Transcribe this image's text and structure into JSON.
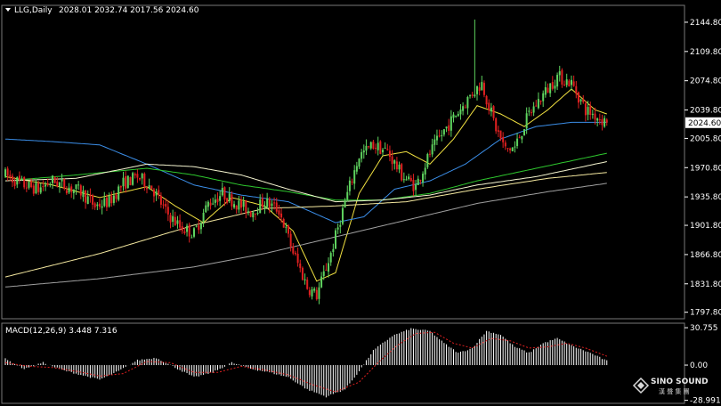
{
  "header": {
    "symbol_label": "LLG,Daily",
    "ohlc": "2028.01 2032.74 2017.56 2024.60",
    "indicator_label": "MACD(12,26,9) 3.448 7.316"
  },
  "watermark": {
    "brand": "SINO SOUND",
    "subtitle": "漢 聲 集 團"
  },
  "colors": {
    "background": "#000000",
    "bull": "#5fd35f",
    "bear": "#e02020",
    "ma_fast": "#f0e040",
    "ma_20": "#3b8ee8",
    "ma_50": "#2ec82e",
    "ma_60": "#f5f5d0",
    "ma_120": "#f5e9a0",
    "ma_200": "#a0a0a0",
    "macd_hist": "#ffffff",
    "macd_signal": "#e02020",
    "axis": "#ffffff"
  },
  "chart_data": [
    {
      "type": "candlestick",
      "ylim": [
        1790,
        2165
      ],
      "y_ticks": [
        "2144.80",
        "2109.80",
        "2074.80",
        "2039.80",
        "2005.80",
        "1970.80",
        "1935.80",
        "1901.80",
        "1866.80",
        "1831.80",
        "1797.80"
      ],
      "current_price_label": "2024.60",
      "price_anchors": [
        [
          0,
          1962
        ],
        [
          8,
          1950
        ],
        [
          14,
          1945
        ],
        [
          20,
          1955
        ],
        [
          26,
          1948
        ],
        [
          32,
          1942
        ],
        [
          38,
          1925
        ],
        [
          44,
          1930
        ],
        [
          50,
          1952
        ],
        [
          56,
          1960
        ],
        [
          62,
          1948
        ],
        [
          68,
          1918
        ],
        [
          74,
          1900
        ],
        [
          80,
          1892
        ],
        [
          86,
          1928
        ],
        [
          92,
          1940
        ],
        [
          98,
          1928
        ],
        [
          104,
          1918
        ],
        [
          110,
          1930
        ],
        [
          116,
          1920
        ],
        [
          122,
          1870
        ],
        [
          128,
          1828
        ],
        [
          132,
          1818
        ],
        [
          138,
          1868
        ],
        [
          144,
          1930
        ],
        [
          150,
          1985
        ],
        [
          156,
          1998
        ],
        [
          162,
          1990
        ],
        [
          168,
          1962
        ],
        [
          174,
          1948
        ],
        [
          180,
          1988
        ],
        [
          186,
          2015
        ],
        [
          192,
          2038
        ],
        [
          198,
          2060
        ],
        [
          202,
          2072
        ],
        [
          208,
          2018
        ],
        [
          212,
          1992
        ],
        [
          216,
          1995
        ],
        [
          222,
          2035
        ],
        [
          228,
          2058
        ],
        [
          234,
          2080
        ],
        [
          240,
          2072
        ],
        [
          246,
          2040
        ],
        [
          252,
          2030
        ],
        [
          255,
          2024.6
        ]
      ],
      "spike": {
        "index": 199,
        "high": 2148
      },
      "moving_averages": [
        {
          "color_key": "ma_fast",
          "points": [
            [
              0,
              1960
            ],
            [
              20,
              1950
            ],
            [
              40,
              1935
            ],
            [
              60,
              1948
            ],
            [
              72,
              1925
            ],
            [
              84,
              1905
            ],
            [
              96,
              1935
            ],
            [
              110,
              1925
            ],
            [
              122,
              1895
            ],
            [
              132,
              1835
            ],
            [
              140,
              1845
            ],
            [
              150,
              1940
            ],
            [
              160,
              1985
            ],
            [
              170,
              1990
            ],
            [
              180,
              1975
            ],
            [
              190,
              2005
            ],
            [
              200,
              2045
            ],
            [
              210,
              2035
            ],
            [
              220,
              2020
            ],
            [
              230,
              2040
            ],
            [
              240,
              2065
            ],
            [
              250,
              2040
            ],
            [
              255,
              2035
            ]
          ]
        },
        {
          "color_key": "ma_20",
          "points": [
            [
              0,
              2005
            ],
            [
              20,
              2002
            ],
            [
              40,
              1998
            ],
            [
              60,
              1975
            ],
            [
              80,
              1950
            ],
            [
              100,
              1938
            ],
            [
              120,
              1930
            ],
            [
              140,
              1905
            ],
            [
              152,
              1912
            ],
            [
              165,
              1945
            ],
            [
              180,
              1955
            ],
            [
              195,
              1975
            ],
            [
              210,
              2005
            ],
            [
              225,
              2020
            ],
            [
              240,
              2025
            ],
            [
              255,
              2025
            ]
          ]
        },
        {
          "color_key": "ma_50",
          "points": [
            [
              0,
              1955
            ],
            [
              30,
              1962
            ],
            [
              60,
              1970
            ],
            [
              80,
              1962
            ],
            [
              100,
              1950
            ],
            [
              120,
              1942
            ],
            [
              140,
              1932
            ],
            [
              160,
              1932
            ],
            [
              180,
              1940
            ],
            [
              200,
              1955
            ],
            [
              225,
              1970
            ],
            [
              255,
              1988
            ]
          ]
        },
        {
          "color_key": "ma_60",
          "points": [
            [
              0,
              1955
            ],
            [
              30,
              1958
            ],
            [
              60,
              1975
            ],
            [
              80,
              1972
            ],
            [
              100,
              1962
            ],
            [
              120,
              1945
            ],
            [
              140,
              1930
            ],
            [
              160,
              1932
            ],
            [
              180,
              1938
            ],
            [
              200,
              1950
            ],
            [
              225,
              1960
            ],
            [
              255,
              1978
            ]
          ]
        },
        {
          "color_key": "ma_120",
          "points": [
            [
              0,
              1840
            ],
            [
              40,
              1868
            ],
            [
              80,
              1902
            ],
            [
              110,
              1922
            ],
            [
              140,
              1925
            ],
            [
              170,
              1930
            ],
            [
              200,
              1945
            ],
            [
              230,
              1958
            ],
            [
              255,
              1965
            ]
          ]
        },
        {
          "color_key": "ma_200",
          "points": [
            [
              0,
              1828
            ],
            [
              40,
              1838
            ],
            [
              80,
              1852
            ],
            [
              110,
              1868
            ],
            [
              140,
              1888
            ],
            [
              170,
              1908
            ],
            [
              200,
              1928
            ],
            [
              230,
              1942
            ],
            [
              255,
              1952
            ]
          ]
        }
      ]
    },
    {
      "type": "macd",
      "ylim": [
        -30,
        33
      ],
      "y_ticks": [
        "30.755",
        "0.00",
        "-28.991"
      ],
      "macd_anchors": [
        [
          0,
          5
        ],
        [
          8,
          -3
        ],
        [
          16,
          2
        ],
        [
          24,
          -4
        ],
        [
          32,
          -8
        ],
        [
          40,
          -12
        ],
        [
          48,
          -5
        ],
        [
          56,
          4
        ],
        [
          64,
          6
        ],
        [
          72,
          -2
        ],
        [
          80,
          -10
        ],
        [
          88,
          -6
        ],
        [
          96,
          2
        ],
        [
          104,
          -3
        ],
        [
          112,
          -6
        ],
        [
          120,
          -10
        ],
        [
          128,
          -20
        ],
        [
          136,
          -26
        ],
        [
          144,
          -20
        ],
        [
          150,
          -5
        ],
        [
          156,
          12
        ],
        [
          164,
          24
        ],
        [
          172,
          30
        ],
        [
          180,
          28
        ],
        [
          186,
          18
        ],
        [
          192,
          10
        ],
        [
          198,
          14
        ],
        [
          204,
          28
        ],
        [
          210,
          25
        ],
        [
          216,
          15
        ],
        [
          222,
          10
        ],
        [
          228,
          18
        ],
        [
          234,
          22
        ],
        [
          240,
          16
        ],
        [
          248,
          10
        ],
        [
          255,
          3.448
        ]
      ],
      "signal_anchors": [
        [
          0,
          2
        ],
        [
          10,
          -1
        ],
        [
          20,
          -2
        ],
        [
          30,
          -5
        ],
        [
          40,
          -9
        ],
        [
          50,
          -7
        ],
        [
          60,
          3
        ],
        [
          70,
          2
        ],
        [
          80,
          -6
        ],
        [
          90,
          -6
        ],
        [
          100,
          -1
        ],
        [
          110,
          -4
        ],
        [
          120,
          -8
        ],
        [
          130,
          -16
        ],
        [
          140,
          -22
        ],
        [
          150,
          -14
        ],
        [
          158,
          2
        ],
        [
          166,
          16
        ],
        [
          174,
          26
        ],
        [
          182,
          27
        ],
        [
          190,
          18
        ],
        [
          198,
          14
        ],
        [
          206,
          22
        ],
        [
          214,
          20
        ],
        [
          222,
          14
        ],
        [
          230,
          15
        ],
        [
          238,
          18
        ],
        [
          246,
          14
        ],
        [
          255,
          7.316
        ]
      ]
    }
  ]
}
